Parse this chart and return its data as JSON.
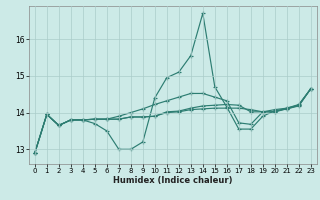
{
  "title": "",
  "xlabel": "Humidex (Indice chaleur)",
  "ylabel": "",
  "bg_color": "#cceae7",
  "grid_color": "#aaccca",
  "line_color": "#2d7d72",
  "xlim": [
    -0.5,
    23.5
  ],
  "ylim": [
    12.6,
    16.9
  ],
  "yticks": [
    13,
    14,
    15,
    16
  ],
  "xticks": [
    0,
    1,
    2,
    3,
    4,
    5,
    6,
    7,
    8,
    9,
    10,
    11,
    12,
    13,
    14,
    15,
    16,
    17,
    18,
    19,
    20,
    21,
    22,
    23
  ],
  "lines": [
    [
      12.9,
      13.95,
      13.65,
      13.8,
      13.8,
      13.7,
      13.5,
      13.0,
      13.0,
      13.2,
      14.4,
      14.95,
      15.1,
      15.55,
      16.7,
      14.7,
      14.15,
      13.55,
      13.55,
      13.9,
      14.05,
      14.1,
      14.2,
      14.65
    ],
    [
      12.9,
      13.95,
      13.65,
      13.8,
      13.8,
      13.82,
      13.82,
      13.82,
      13.88,
      13.88,
      13.9,
      14.0,
      14.02,
      14.08,
      14.1,
      14.12,
      14.12,
      14.12,
      14.08,
      14.02,
      14.02,
      14.1,
      14.18,
      14.65
    ],
    [
      12.9,
      13.95,
      13.65,
      13.8,
      13.8,
      13.82,
      13.82,
      13.82,
      13.88,
      13.88,
      13.9,
      14.02,
      14.04,
      14.12,
      14.18,
      14.2,
      14.22,
      14.2,
      14.02,
      14.02,
      14.02,
      14.12,
      14.2,
      14.65
    ],
    [
      12.9,
      13.95,
      13.65,
      13.8,
      13.8,
      13.82,
      13.82,
      13.9,
      14.0,
      14.1,
      14.22,
      14.32,
      14.42,
      14.52,
      14.52,
      14.42,
      14.32,
      13.72,
      13.68,
      14.02,
      14.08,
      14.12,
      14.22,
      14.65
    ]
  ]
}
